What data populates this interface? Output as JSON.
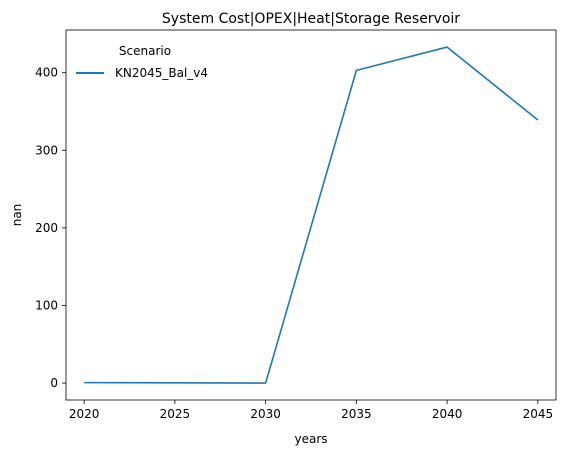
{
  "chart_data": {
    "type": "line",
    "title": "System Cost|OPEX|Heat|Storage Reservoir",
    "xlabel": "years",
    "ylabel": "nan",
    "x": [
      2020,
      2025,
      2030,
      2035,
      2040,
      2045
    ],
    "xlim": [
      2019,
      2046
    ],
    "ylim": [
      -21.8,
      455
    ],
    "xticks": [
      2020,
      2025,
      2030,
      2035,
      2040,
      2045
    ],
    "yticks": [
      0,
      100,
      200,
      300,
      400
    ],
    "grid": false,
    "legend": {
      "title": "Scenario",
      "placement": "upper-left"
    },
    "series": [
      {
        "name": "KN2045_Bal_v4",
        "color": "#1f77b4",
        "values": [
          0.6,
          0.3,
          0.0,
          403.0,
          433.0,
          339.0
        ]
      }
    ]
  }
}
